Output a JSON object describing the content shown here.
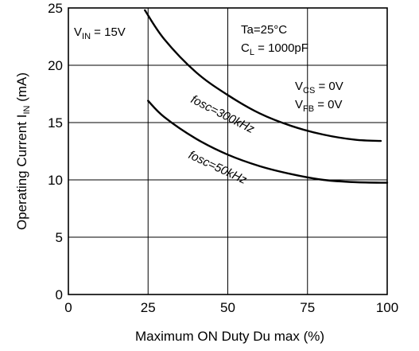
{
  "chart_data": {
    "type": "line",
    "xlabel": "Maximum ON Duty  Du max  (%)",
    "ylabel_parts": [
      "Operating Current  I",
      "IN",
      " (mA)"
    ],
    "xlim": [
      0,
      100
    ],
    "ylim": [
      0,
      25
    ],
    "x_ticks": [
      "0",
      "25",
      "50",
      "75",
      "100"
    ],
    "y_ticks": [
      "0",
      "5",
      "10",
      "15",
      "20",
      "25"
    ],
    "grid": true,
    "annotations": {
      "vin": {
        "main": "V",
        "sub": "IN",
        "rest": " = 15V"
      },
      "ta": "Ta=25°C",
      "cl": {
        "main": "C",
        "sub": "L",
        "rest": " = 1000pF"
      },
      "vcs": {
        "main": "V",
        "sub": "CS",
        "rest": " = 0V"
      },
      "vfb": {
        "main": "V",
        "sub": "FB",
        "rest": " = 0V"
      }
    },
    "series": [
      {
        "name": "fosc=300kHz",
        "x": [
          24,
          30,
          40,
          50,
          60,
          70,
          80,
          90,
          98
        ],
        "y": [
          24.8,
          22.3,
          19.4,
          17.4,
          15.8,
          14.7,
          13.95,
          13.5,
          13.4
        ]
      },
      {
        "name": "fosc=50kHz",
        "x": [
          25,
          30,
          40,
          50,
          60,
          70,
          80,
          90,
          100
        ],
        "y": [
          16.9,
          15.5,
          13.6,
          12.2,
          11.2,
          10.5,
          10.0,
          9.8,
          9.75
        ]
      }
    ]
  }
}
